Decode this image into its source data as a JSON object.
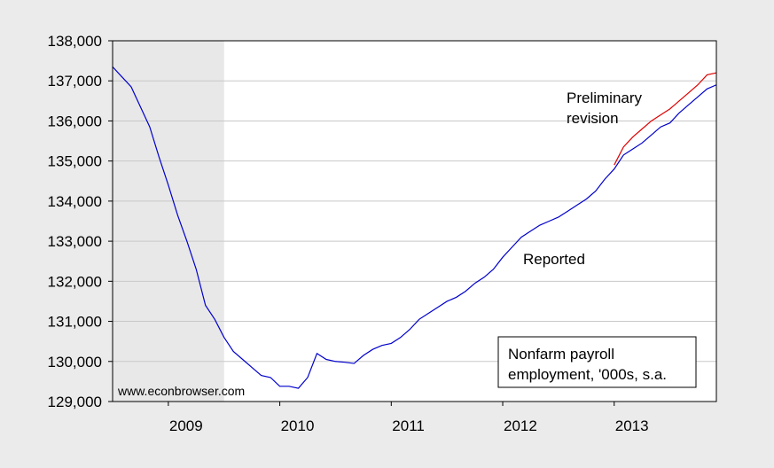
{
  "chart_data": {
    "type": "line",
    "x": [
      2008.5,
      2008.5833,
      2008.6667,
      2008.75,
      2008.8333,
      2008.9167,
      2009,
      2009.0833,
      2009.1667,
      2009.25,
      2009.3333,
      2009.4167,
      2009.5,
      2009.5833,
      2009.6667,
      2009.75,
      2009.8333,
      2009.9167,
      2010,
      2010.0833,
      2010.1667,
      2010.25,
      2010.3333,
      2010.4167,
      2010.5,
      2010.5833,
      2010.6667,
      2010.75,
      2010.8333,
      2010.9167,
      2011,
      2011.0833,
      2011.1667,
      2011.25,
      2011.3333,
      2011.4167,
      2011.5,
      2011.5833,
      2011.6667,
      2011.75,
      2011.8333,
      2011.9167,
      2012,
      2012.0833,
      2012.1667,
      2012.25,
      2012.3333,
      2012.4167,
      2012.5,
      2012.5833,
      2012.6667,
      2012.75,
      2012.8333,
      2012.9167,
      2013,
      2013.0833,
      2013.1667,
      2013.25,
      2013.3333,
      2013.4167,
      2013.5,
      2013.5833,
      2013.6667,
      2013.75,
      2013.8333,
      2013.9167
    ],
    "series": [
      {
        "name": "Reported",
        "color": "#0000cc",
        "values": [
          137350,
          137100,
          136850,
          136350,
          135850,
          135100,
          134400,
          133650,
          133000,
          132300,
          131400,
          131050,
          130600,
          130250,
          130050,
          129850,
          129650,
          129600,
          129380,
          129380,
          129330,
          129600,
          130200,
          130050,
          130000,
          129980,
          129950,
          130150,
          130300,
          130400,
          130450,
          130600,
          130800,
          131050,
          131200,
          131350,
          131500,
          131600,
          131750,
          131950,
          132100,
          132300,
          132600,
          132850,
          133100,
          133250,
          133400,
          133500,
          133600,
          133750,
          133900,
          134050,
          134250,
          134550,
          134800,
          135150,
          135300,
          135450,
          135650,
          135850,
          135950,
          136200,
          136400,
          136600,
          136800,
          136900
        ]
      },
      {
        "name": "Preliminary revision",
        "color": "#dd0000",
        "values": [
          null,
          null,
          null,
          null,
          null,
          null,
          null,
          null,
          null,
          null,
          null,
          null,
          null,
          null,
          null,
          null,
          null,
          null,
          null,
          null,
          null,
          null,
          null,
          null,
          null,
          null,
          null,
          null,
          null,
          null,
          null,
          null,
          null,
          null,
          null,
          null,
          null,
          null,
          null,
          null,
          null,
          null,
          null,
          null,
          null,
          null,
          null,
          null,
          null,
          null,
          null,
          null,
          null,
          null,
          134900,
          135350,
          135600,
          135800,
          136000,
          136150,
          136300,
          136500,
          136700,
          136900,
          137150,
          137200
        ]
      }
    ],
    "annotations": [
      {
        "lines": [
          "Preliminary",
          "revision"
        ],
        "color": "#dd0000"
      },
      {
        "lines": [
          "Reported"
        ],
        "color": "#0000cc"
      },
      {
        "lines": [
          "Nonfarm payroll",
          "employment, '000s, s.a."
        ],
        "color": "#000000"
      },
      {
        "lines": [
          "www.econbrowser.com"
        ],
        "color": "#000000"
      }
    ],
    "recession": [
      2008.5,
      2009.5
    ],
    "xlim": [
      2008.5,
      2013.9167
    ],
    "xticks": [
      2009,
      2010,
      2011,
      2012,
      2013
    ],
    "ylim": [
      129000,
      138000
    ],
    "yticks": [
      {
        "value": 129000,
        "label": "129,000"
      },
      {
        "value": 130000,
        "label": "130,000"
      },
      {
        "value": 131000,
        "label": "131,000"
      },
      {
        "value": 132000,
        "label": "132,000"
      },
      {
        "value": 133000,
        "label": "133,000"
      },
      {
        "value": 134000,
        "label": "134,000"
      },
      {
        "value": 135000,
        "label": "135,000"
      },
      {
        "value": 136000,
        "label": "136,000"
      },
      {
        "value": 137000,
        "label": "137,000"
      },
      {
        "value": 138000,
        "label": "138,000"
      }
    ],
    "grid": true
  }
}
